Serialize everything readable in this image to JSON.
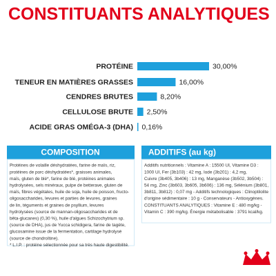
{
  "chart_data": {
    "type": "bar",
    "orientation": "horizontal",
    "title": "CONSTITUANTS ANALYTIQUES",
    "categories": [
      "PROTÉINE",
      "TENEUR EN MATIÈRES GRASSES",
      "CENDRES BRUTES",
      "CELLULOSE BRUTE",
      "ACIDE GRAS OMÉGA-3 (DHA)"
    ],
    "values": [
      30,
      16,
      8.2,
      2.5,
      0.16
    ],
    "value_labels": [
      "30,00%",
      "16,00%",
      "8,20%",
      "2,50%",
      "0,16%"
    ],
    "color": "#1ea0dc"
  },
  "composition": {
    "title": "COMPOSITION",
    "lines": [
      "Protéines de volaille déshydratées, farine de maïs, riz,",
      "protéines de porc déshydratées*, graisses animales,",
      "maïs, gluten de blé*, farine de blé, protéines animales",
      "hydrolysées, sels minéraux, pulpe de betterave, gluten de",
      "maïs, fibres végétales, huile de soja, huile de poisson, fructo-",
      "oligosaccharides, levures et parties de levures, graines",
      "de lin, téguments et graines de psyllium, levures",
      "hydrolysées (source de mannan-oligosaccharides et de",
      "bêta-glucanes) (0,30 %), huile d'algues Schizochytrium sp.",
      "(source de DHA), jus de Yucca schidigera, farine de tagète,",
      "glucosamine issue de la fermentation, cartilage hydrolysé",
      "(source de chondroïtine).",
      "* L.I.P. : protéine sélectionnée pour sa très haute digestibilité."
    ]
  },
  "additifs": {
    "title": "ADDITIFS (au kg)",
    "lines": [
      "Additifs nutritionnels : Vitamine A : 15500 UI, Vitamine D3 :",
      "1000 UI, Fer (3b103) : 42 mg, Iode (3b201) : 4,2 mg,",
      "Cuivre (3b405, 3b406) : 13 mg, Manganèse (3b502, 3b504) :",
      "54 mg, Zinc (3b603, 3b605, 3b606) : 136 mg, Sélénium (3b801,",
      "3b811, 3b812) : 0,07 mg - Additifs technologiques : Clinoptilolite",
      "d'origine sédimentaire : 10 g - Conservateurs - Antioxygènes.",
      "CONSTITUANTS ANALYTIQUES : Vitamine E : 480 mg/kg -",
      "Vitamin C : 390 mg/kg. Énergie métabolisable : 3791 kcal/kg."
    ]
  }
}
